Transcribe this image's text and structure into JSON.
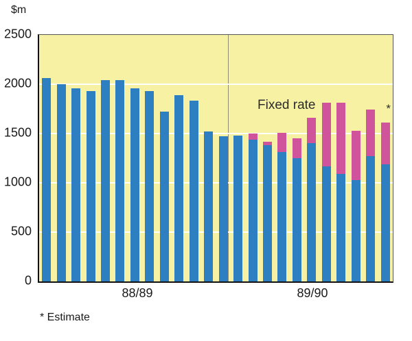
{
  "chart_data": {
    "type": "bar",
    "stacked": true,
    "unit_label": "$m",
    "ylim": [
      0,
      2500
    ],
    "yticks": [
      0,
      500,
      1000,
      1500,
      2000,
      2500
    ],
    "gridlines": [
      500,
      1000,
      1500,
      2000
    ],
    "x_group_labels": [
      "88/89",
      "89/90"
    ],
    "bars_per_group": 12,
    "annotation": "Fixed rate",
    "estimate_marker": "*",
    "footnote": "* Estimate",
    "legend_position": "none",
    "series": [
      {
        "name": "",
        "color": "#2d7fc1",
        "values": [
          2060,
          2000,
          1960,
          1930,
          2040,
          2040,
          1960,
          1930,
          1720,
          1890,
          1830,
          1520,
          1470,
          1480,
          1440,
          1380,
          1310,
          1250,
          1400,
          1170,
          1090,
          1030,
          1270,
          1190
        ]
      },
      {
        "name": "Fixed rate",
        "color": "#d0549b",
        "values": [
          0,
          0,
          0,
          0,
          0,
          0,
          0,
          0,
          0,
          0,
          0,
          0,
          0,
          0,
          60,
          40,
          200,
          200,
          260,
          640,
          720,
          500,
          470,
          420
        ]
      }
    ],
    "colors": {
      "plot_background": "#f7f2a3",
      "grid": "#ffffff",
      "axis": "#111111",
      "bar_blue": "#2d7fc1",
      "bar_pink": "#d0549b"
    }
  }
}
